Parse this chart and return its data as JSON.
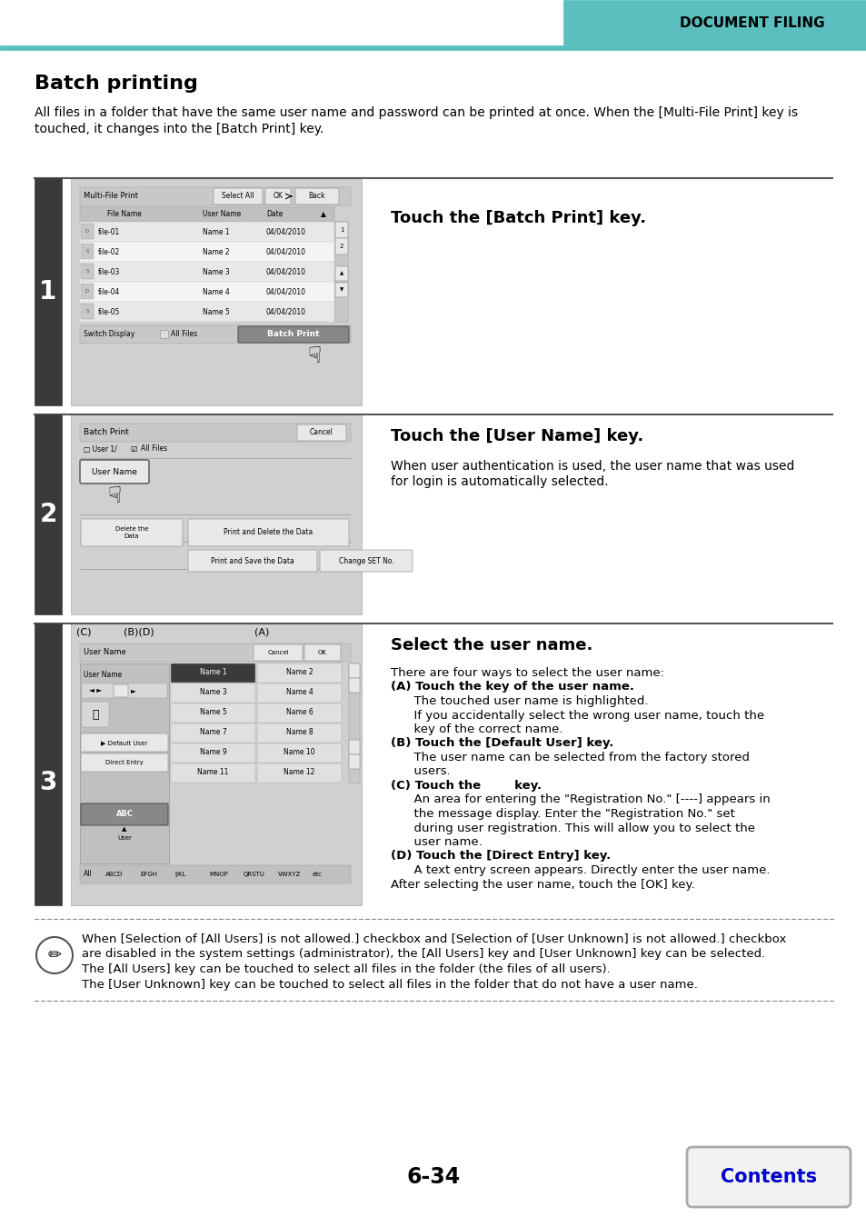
{
  "title": "Batch printing",
  "subtitle_line1": "All files in a folder that have the same user name and password can be printed at once. When the [Multi-File Print] key is",
  "subtitle_line2": "touched, it changes into the [Batch Print] key.",
  "header_text": "DOCUMENT FILING",
  "teal_color": "#5bbfbf",
  "page_number": "6-34",
  "contents_text": "Contents",
  "contents_color": "#0000cc",
  "step1_instruction": "Touch the [Batch Print] key.",
  "step2_instruction": "Touch the [User Name] key.",
  "step2_detail_line1": "When user authentication is used, the user name that was used",
  "step2_detail_line2": "for login is automatically selected.",
  "step3_instruction": "Select the user name.",
  "step3_lines": [
    [
      "There are four ways to select the user name:",
      false
    ],
    [
      "(A) Touch the key of the user name.",
      true
    ],
    [
      "      The touched user name is highlighted.",
      false
    ],
    [
      "      If you accidentally select the wrong user name, touch the",
      false
    ],
    [
      "      key of the correct name.",
      false
    ],
    [
      "(B) Touch the [Default User] key.",
      true
    ],
    [
      "      The user name can be selected from the factory stored",
      false
    ],
    [
      "      users.",
      false
    ],
    [
      "(C) Touch the        key.",
      true
    ],
    [
      "      An area for entering the \"Registration No.\" [----] appears in",
      false
    ],
    [
      "      the message display. Enter the \"Registration No.\" set",
      false
    ],
    [
      "      during user registration. This will allow you to select the",
      false
    ],
    [
      "      user name.",
      false
    ],
    [
      "(D) Touch the [Direct Entry] key.",
      true
    ],
    [
      "      A text entry screen appears. Directly enter the user name.",
      false
    ],
    [
      "After selecting the user name, touch the [OK] key.",
      false
    ]
  ],
  "note_lines": [
    "When [Selection of [All Users] is not allowed.] checkbox and [Selection of [User Unknown] is not allowed.] checkbox",
    "are disabled in the system settings (administrator), the [All Users] key and [User Unknown] key can be selected.",
    "The [All Users] key can be touched to select all files in the folder (the files of all users).",
    "The [User Unknown] key can be touched to select all files in the folder that do not have a user name."
  ],
  "bg_color": "#ffffff",
  "dark_sidebar": "#3a3a3a",
  "screen_bg": "#d0d0d0",
  "btn_color": "#e8e8e8",
  "btn_border": "#999999"
}
